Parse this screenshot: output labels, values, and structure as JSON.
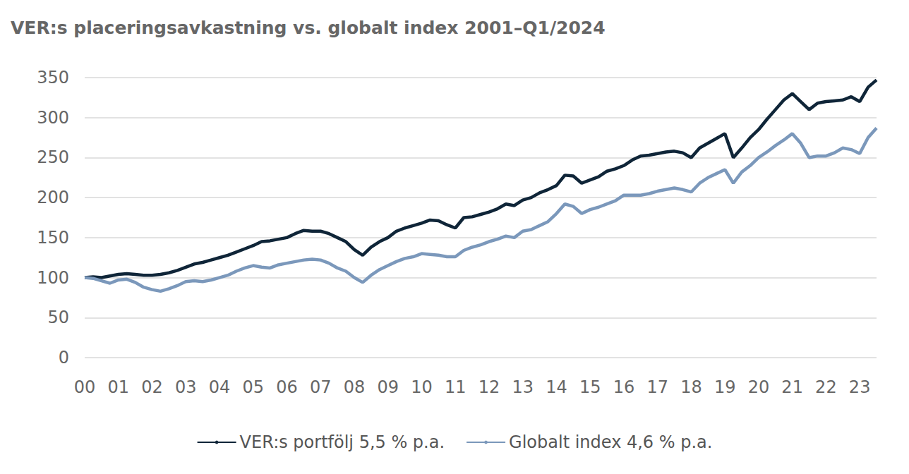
{
  "chart_data": {
    "type": "line",
    "title": "VER:s placeringsavkastning vs. globalt index 2001–Q1/2024",
    "categories": [
      "00",
      null,
      null,
      null,
      "01",
      null,
      null,
      null,
      "02",
      null,
      null,
      null,
      "03",
      null,
      null,
      null,
      "04",
      null,
      null,
      null,
      "05",
      null,
      null,
      null,
      "06",
      null,
      null,
      null,
      "07",
      null,
      null,
      null,
      "08",
      null,
      null,
      null,
      "09",
      null,
      null,
      null,
      "10",
      null,
      null,
      null,
      "11",
      null,
      null,
      null,
      "12",
      null,
      null,
      null,
      "13",
      null,
      null,
      null,
      "14",
      null,
      null,
      null,
      "15",
      null,
      null,
      null,
      "16",
      null,
      null,
      null,
      "17",
      null,
      null,
      null,
      "18",
      null,
      null,
      null,
      "19",
      null,
      null,
      null,
      "20",
      null,
      null,
      null,
      "21",
      null,
      null,
      null,
      "22",
      null,
      null,
      null,
      "23",
      null,
      null
    ],
    "series": [
      {
        "name": "VER:s portfölj 5,5 % p.a.",
        "color": "#0f2538",
        "values": [
          100,
          101,
          100,
          102,
          104,
          105,
          104,
          103,
          103,
          104,
          106,
          109,
          113,
          117,
          119,
          122,
          125,
          128,
          132,
          136,
          140,
          145,
          146,
          148,
          150,
          155,
          159,
          158,
          158,
          155,
          150,
          145,
          135,
          128,
          138,
          145,
          150,
          158,
          162,
          165,
          168,
          172,
          171,
          166,
          162,
          175,
          176,
          179,
          182,
          186,
          192,
          190,
          197,
          200,
          206,
          210,
          215,
          228,
          227,
          218,
          222,
          226,
          233,
          236,
          240,
          247,
          252,
          253,
          255,
          257,
          258,
          256,
          250,
          262,
          268,
          274,
          280,
          250,
          262,
          275,
          285,
          298,
          310,
          322,
          330,
          320,
          310,
          318,
          320,
          321,
          322,
          326,
          320,
          338,
          347
        ]
      },
      {
        "name": "Globalt index 4,6 % p.a.",
        "color": "#7b98bb",
        "values": [
          100,
          99,
          96,
          93,
          97,
          98,
          94,
          88,
          85,
          83,
          86,
          90,
          95,
          96,
          95,
          97,
          100,
          103,
          108,
          112,
          115,
          113,
          112,
          116,
          118,
          120,
          122,
          123,
          122,
          118,
          112,
          108,
          100,
          94,
          103,
          110,
          115,
          120,
          124,
          126,
          130,
          129,
          128,
          126,
          126,
          134,
          138,
          141,
          145,
          148,
          152,
          150,
          158,
          160,
          165,
          170,
          180,
          192,
          189,
          180,
          185,
          188,
          192,
          196,
          203,
          203,
          203,
          205,
          208,
          210,
          212,
          210,
          207,
          218,
          225,
          230,
          235,
          218,
          232,
          240,
          250,
          257,
          265,
          272,
          280,
          268,
          250,
          252,
          252,
          256,
          262,
          260,
          255,
          275,
          287
        ]
      }
    ],
    "ylim": [
      0,
      350
    ],
    "yticks": [
      0,
      50,
      100,
      150,
      200,
      250,
      300,
      350
    ],
    "grid": true,
    "legend": "bottom"
  }
}
